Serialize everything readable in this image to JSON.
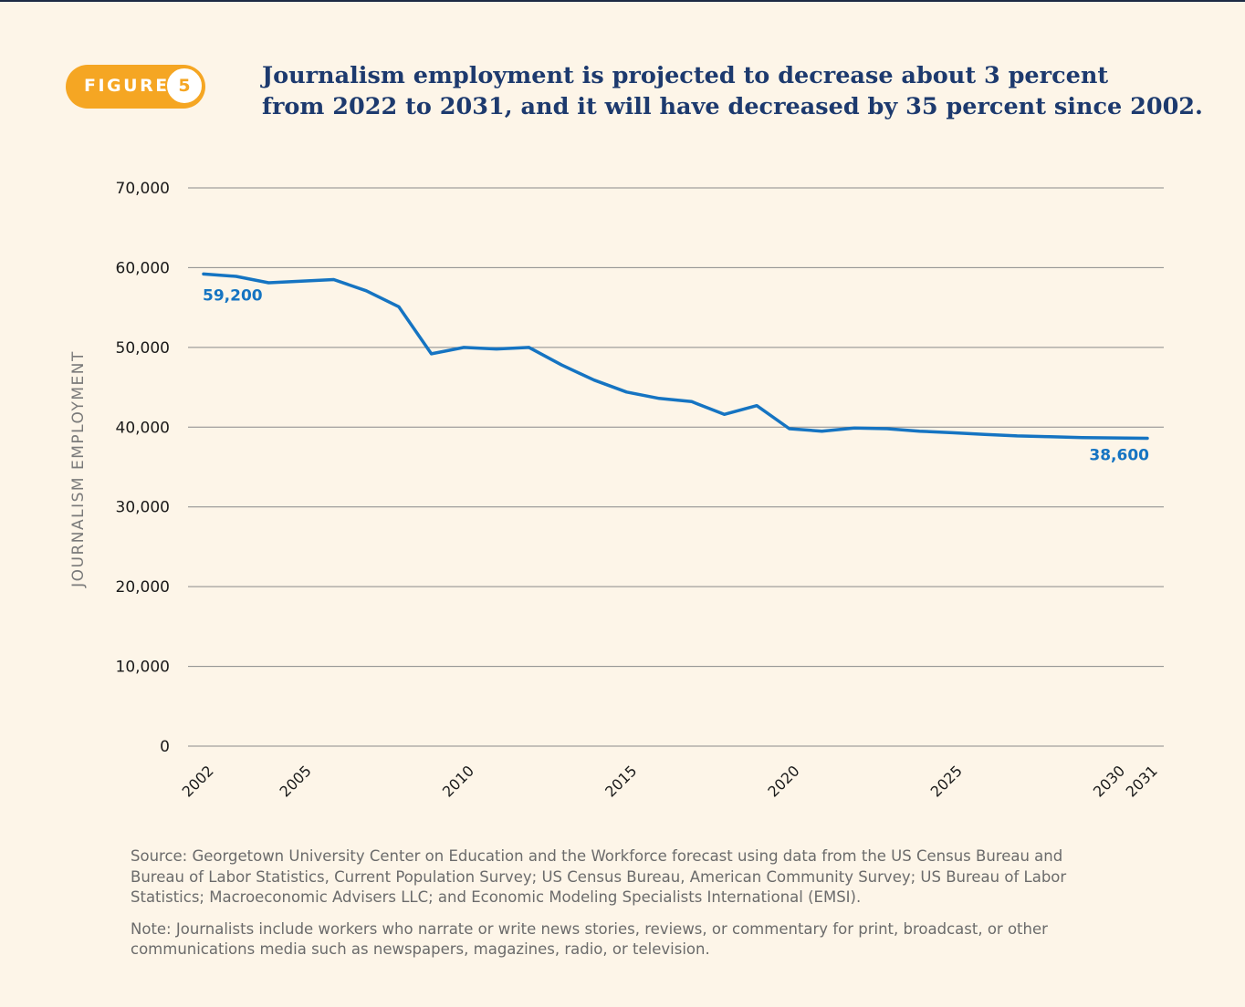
{
  "figure": {
    "label": "FIGURE",
    "number": "5"
  },
  "title_lines": [
    "Journalism employment is projected to decrease about 3 percent",
    "from 2022 to 2031, and it will have decreased by 35 percent since 2002."
  ],
  "chart_data": {
    "type": "line",
    "ylabel": "JOURNALISM EMPLOYMENT",
    "xlabel": "",
    "ylim": [
      0,
      70000
    ],
    "xlim": [
      2002,
      2031
    ],
    "yticks": [
      0,
      10000,
      20000,
      30000,
      40000,
      50000,
      60000,
      70000
    ],
    "ytick_labels": [
      "0",
      "10,000",
      "20,000",
      "30,000",
      "40,000",
      "50,000",
      "60,000",
      "70,000"
    ],
    "xticks": [
      2002,
      2005,
      2010,
      2015,
      2020,
      2025,
      2030,
      2031
    ],
    "xtick_labels": [
      "2002",
      "2005",
      "2010",
      "2015",
      "2020",
      "2025",
      "2030",
      "2031"
    ],
    "grid": true,
    "line_color": "#1574c2",
    "series": [
      {
        "x": [
          2002,
          2003,
          2004,
          2005,
          2006,
          2007,
          2008,
          2009,
          2010,
          2011,
          2012,
          2013,
          2014,
          2015,
          2016,
          2017,
          2018,
          2019,
          2020,
          2021,
          2022,
          2023,
          2024,
          2025,
          2026,
          2027,
          2028,
          2029,
          2030,
          2031
        ],
        "y": [
          59200,
          58900,
          58100,
          58300,
          58500,
          57100,
          55100,
          49200,
          50000,
          49800,
          50000,
          47800,
          45900,
          44400,
          43600,
          43200,
          41600,
          42700,
          39800,
          39500,
          39900,
          39800,
          39500,
          39300,
          39100,
          38900,
          38800,
          38700,
          38650,
          38600
        ]
      }
    ],
    "annotations": [
      {
        "text": "59,200",
        "x": 2002,
        "y": 59200
      },
      {
        "text": "38,600",
        "x": 2031,
        "y": 38600
      }
    ]
  },
  "source_text": "Source: Georgetown University Center on Education and the Workforce forecast using data from the US Census Bureau and Bureau of Labor Statistics, Current Population Survey; US Census Bureau, American Community Survey; US Bureau of Labor Statistics; Macroeconomic Advisers LLC; and Economic Modeling Specialists International (EMSI).",
  "note_text": "Note: Journalists include workers who narrate or write news stories, reviews, or commentary for print, broadcast, or other communications media such as newspapers, magazines, radio, or television."
}
